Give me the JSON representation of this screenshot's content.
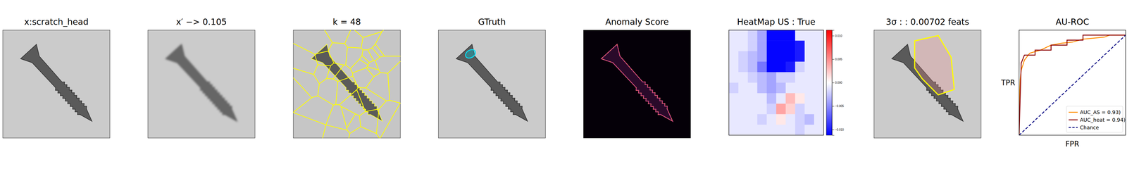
{
  "chart_data": [
    {
      "type": "image",
      "title": "x:scratch_head"
    },
    {
      "type": "image",
      "title": "x′ −> 0.105"
    },
    {
      "type": "image",
      "title": "k = 48"
    },
    {
      "type": "image",
      "title": "GTruth"
    },
    {
      "type": "image",
      "title": "Anomaly Score"
    },
    {
      "type": "heatmap",
      "title": "HeatMap US : True",
      "cells": [
        [
          -0.001,
          -0.001,
          -0.002,
          -0.004,
          -0.011,
          -0.011,
          -0.011,
          -0.001,
          -0.001,
          -0.001
        ],
        [
          -0.001,
          -0.001,
          -0.002,
          -0.004,
          -0.011,
          -0.011,
          -0.011,
          -0.01,
          -0.001,
          -0.001
        ],
        [
          -0.001,
          -0.002,
          -0.003,
          -0.004,
          -0.011,
          -0.011,
          -0.011,
          -0.01,
          -0.001,
          -0.001
        ],
        [
          -0.001,
          -0.002,
          -0.003,
          -0.006,
          -0.011,
          -0.011,
          -0.01,
          -0.002,
          -0.001,
          -0.001
        ],
        [
          -0.001,
          -0.001,
          -0.002,
          -0.003,
          -0.004,
          -0.002,
          -0.002,
          -0.001,
          -0.001,
          -0.001
        ],
        [
          -0.002,
          -0.001,
          -0.001,
          -0.003,
          -0.004,
          -0.003,
          -0.001,
          -0.001,
          -0.001,
          -0.001
        ],
        [
          -0.001,
          -0.001,
          -0.001,
          -0.001,
          -0.003,
          -0.001,
          0.003,
          0.001,
          -0.001,
          -0.001
        ],
        [
          -0.001,
          -0.001,
          -0.001,
          -0.001,
          -0.002,
          0.004,
          0.002,
          -0.002,
          -0.001,
          -0.001
        ],
        [
          -0.001,
          -0.001,
          -0.001,
          -0.002,
          -0.001,
          0.001,
          -0.001,
          -0.002,
          -0.003,
          -0.001
        ],
        [
          -0.001,
          -0.001,
          -0.001,
          -0.001,
          -0.001,
          -0.001,
          -0.001,
          -0.002,
          -0.001,
          -0.001
        ]
      ],
      "colorbar": {
        "range": [
          -0.0112,
          0.0112
        ],
        "ticks": [
          {
            "value": 0.01,
            "label": "0.010"
          },
          {
            "value": 0.005,
            "label": "0.005"
          },
          {
            "value": 0,
            "label": "0.000"
          },
          {
            "value": -0.005,
            "label": "−0.005"
          },
          {
            "value": -0.01,
            "label": "−0.010"
          }
        ]
      }
    },
    {
      "type": "image",
      "title": "3σ : : 0.00702 feats"
    },
    {
      "type": "line",
      "title": "AU-ROC",
      "x_label": "FPR",
      "y_label": "TPR",
      "xlim": [
        0,
        1
      ],
      "ylim": [
        0,
        1.05
      ],
      "legend": "lower right",
      "series": [
        {
          "name": "AUC_AS = 0.93)",
          "color": "#ff8c00",
          "x": [
            0,
            0.005,
            0.01,
            0.02,
            0.05,
            0.1,
            0.2,
            0.3,
            0.4,
            0.5,
            0.6,
            0.7,
            0.8,
            0.85,
            1
          ],
          "values": [
            0,
            0.4,
            0.55,
            0.65,
            0.75,
            0.82,
            0.85,
            0.9,
            0.92,
            0.93,
            0.96,
            0.97,
            0.98,
            1,
            1
          ]
        },
        {
          "name": "AUC_heat = 0.94)",
          "color": "#8b0000",
          "x": [
            0,
            0.02,
            0.05,
            0.15,
            0.15,
            0.3,
            0.3,
            0.45,
            0.45,
            0.6,
            0.6,
            1
          ],
          "values": [
            0,
            0.72,
            0.8,
            0.8,
            0.85,
            0.85,
            0.9,
            0.9,
            0.95,
            0.95,
            1,
            1
          ]
        },
        {
          "name": "Chance",
          "color": "#000080",
          "line_style": "dashed",
          "x": [
            0,
            1
          ],
          "values": [
            0,
            1
          ]
        }
      ]
    }
  ]
}
